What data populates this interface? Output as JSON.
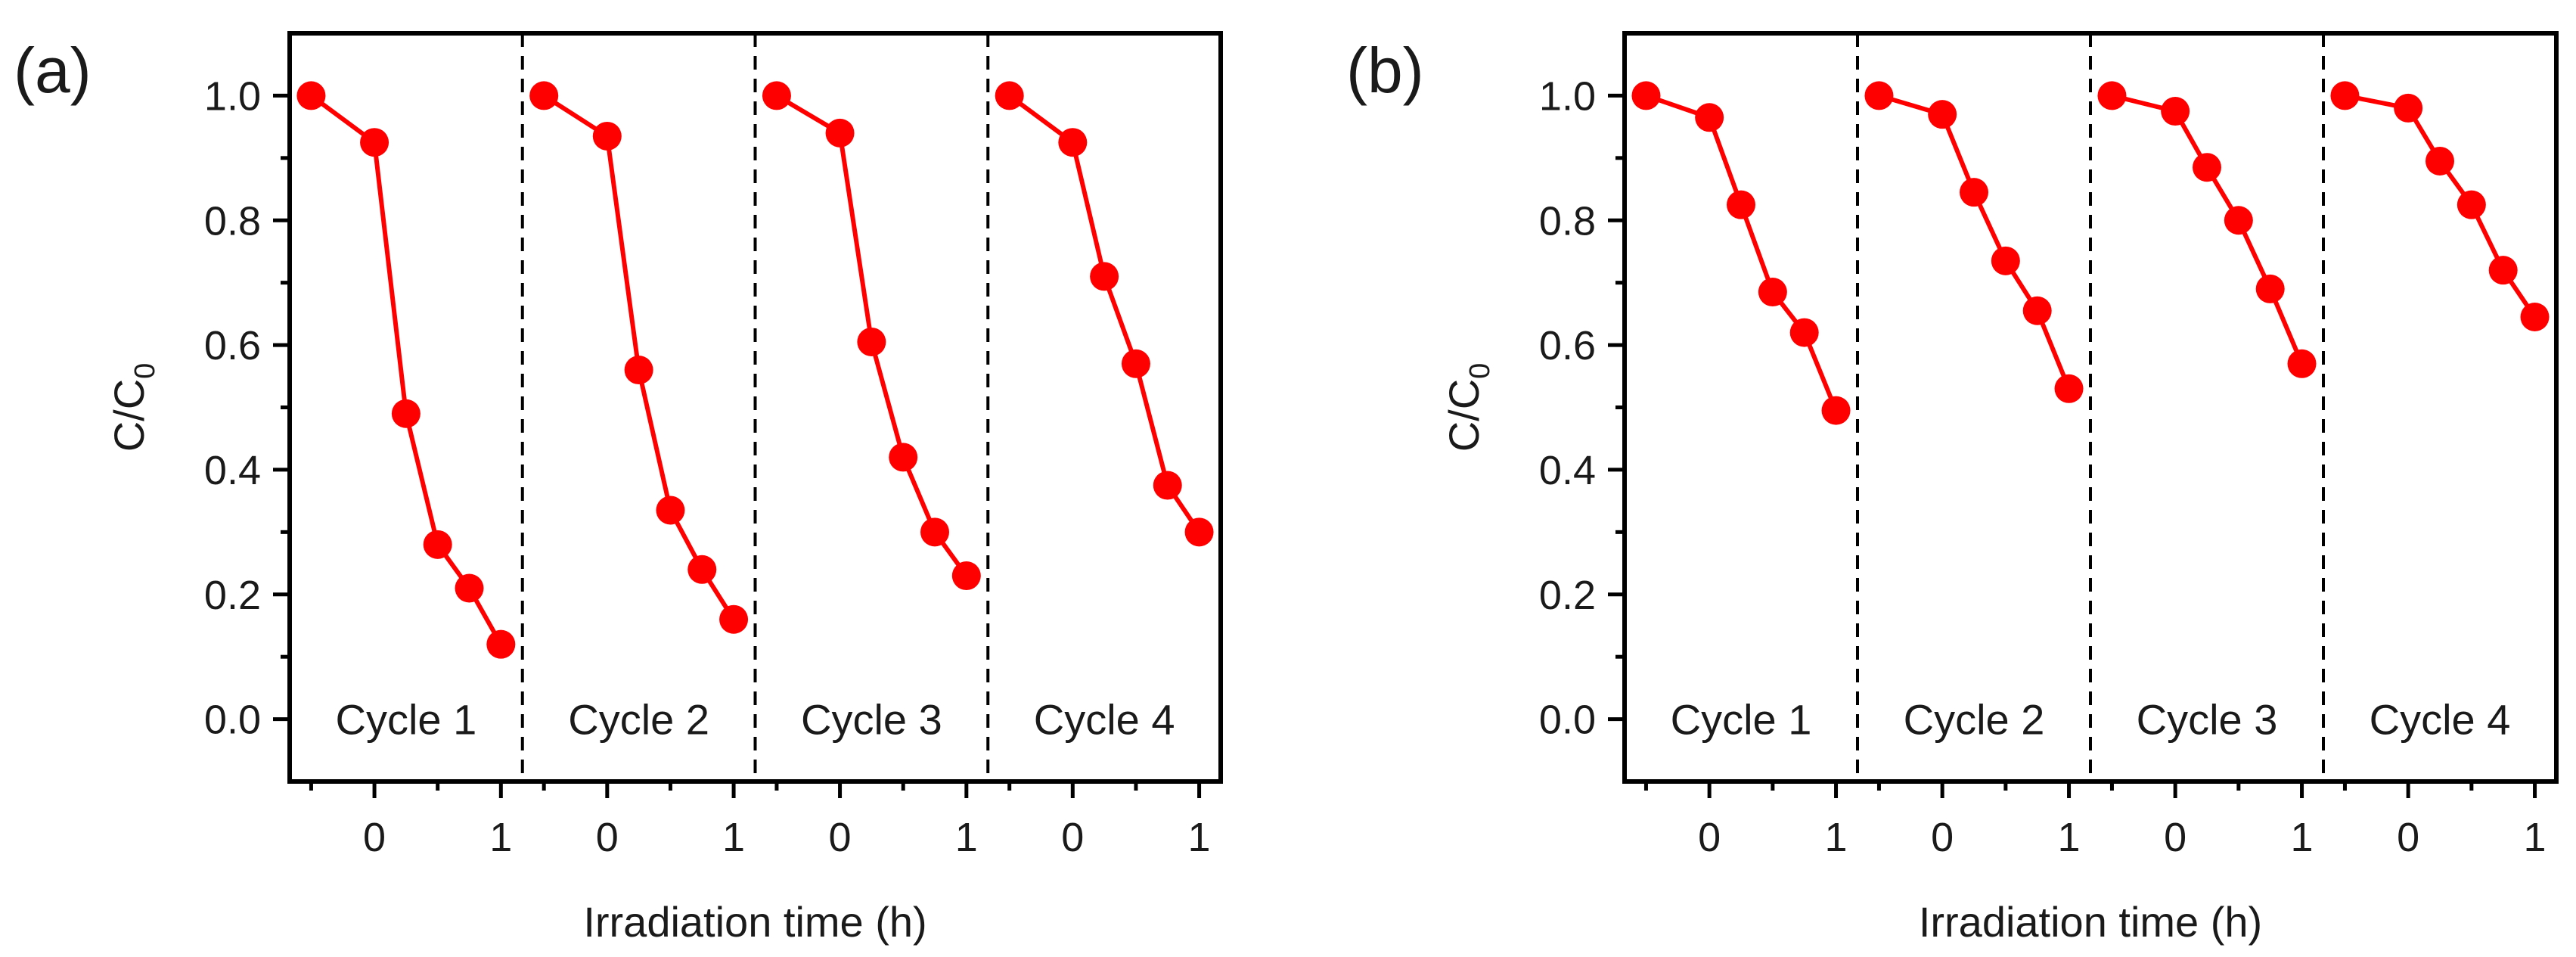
{
  "chart_data": [
    {
      "type": "line",
      "panel_label": "(a)",
      "ylabel_main": "C/C",
      "ylabel_sub": "0",
      "xlabel": "Irradiation time (h)",
      "ylim": [
        -0.1,
        1.1
      ],
      "yticks": [
        "0.0",
        "0.2",
        "0.4",
        "0.6",
        "0.8",
        "1.0"
      ],
      "ytick_values": [
        0.0,
        0.2,
        0.4,
        0.6,
        0.8,
        1.0
      ],
      "xticks": [
        "0",
        "1"
      ],
      "xtick_values": [
        0,
        1
      ],
      "segment_xlim": [
        -0.67,
        1.17
      ],
      "cycles": [
        {
          "label": "Cycle 1",
          "x": [
            -0.5,
            0,
            0.25,
            0.5,
            0.75,
            1.0
          ],
          "y": [
            1.0,
            0.925,
            0.49,
            0.28,
            0.21,
            0.12
          ]
        },
        {
          "label": "Cycle 2",
          "x": [
            -0.5,
            0,
            0.25,
            0.5,
            0.75,
            1.0
          ],
          "y": [
            1.0,
            0.935,
            0.56,
            0.335,
            0.24,
            0.16
          ]
        },
        {
          "label": "Cycle 3",
          "x": [
            -0.5,
            0,
            0.25,
            0.5,
            0.75,
            1.0
          ],
          "y": [
            1.0,
            0.94,
            0.605,
            0.42,
            0.3,
            0.23
          ]
        },
        {
          "label": "Cycle 4",
          "x": [
            -0.5,
            0,
            0.25,
            0.5,
            0.75,
            1.0
          ],
          "y": [
            1.0,
            0.925,
            0.71,
            0.57,
            0.375,
            0.3
          ]
        }
      ],
      "line_color": "#ff0000"
    },
    {
      "type": "line",
      "panel_label": "(b)",
      "ylabel_main": "C/C",
      "ylabel_sub": "0",
      "xlabel": "Irradiation time (h)",
      "ylim": [
        -0.1,
        1.1
      ],
      "yticks": [
        "0.0",
        "0.2",
        "0.4",
        "0.6",
        "0.8",
        "1.0"
      ],
      "ytick_values": [
        0.0,
        0.2,
        0.4,
        0.6,
        0.8,
        1.0
      ],
      "xticks": [
        "0",
        "1"
      ],
      "xtick_values": [
        0,
        1
      ],
      "segment_xlim": [
        -0.67,
        1.17
      ],
      "cycles": [
        {
          "label": "Cycle 1",
          "x": [
            -0.5,
            0,
            0.25,
            0.5,
            0.75,
            1.0
          ],
          "y": [
            1.0,
            0.965,
            0.825,
            0.685,
            0.62,
            0.495
          ]
        },
        {
          "label": "Cycle 2",
          "x": [
            -0.5,
            0,
            0.25,
            0.5,
            0.75,
            1.0
          ],
          "y": [
            1.0,
            0.97,
            0.845,
            0.735,
            0.655,
            0.53
          ]
        },
        {
          "label": "Cycle 3",
          "x": [
            -0.5,
            0,
            0.25,
            0.5,
            0.75,
            1.0
          ],
          "y": [
            1.0,
            0.975,
            0.885,
            0.8,
            0.69,
            0.57
          ]
        },
        {
          "label": "Cycle 4",
          "x": [
            -0.5,
            0,
            0.25,
            0.5,
            0.75,
            1.0
          ],
          "y": [
            1.0,
            0.98,
            0.895,
            0.825,
            0.72,
            0.645
          ]
        }
      ],
      "line_color": "#ff0000"
    }
  ]
}
